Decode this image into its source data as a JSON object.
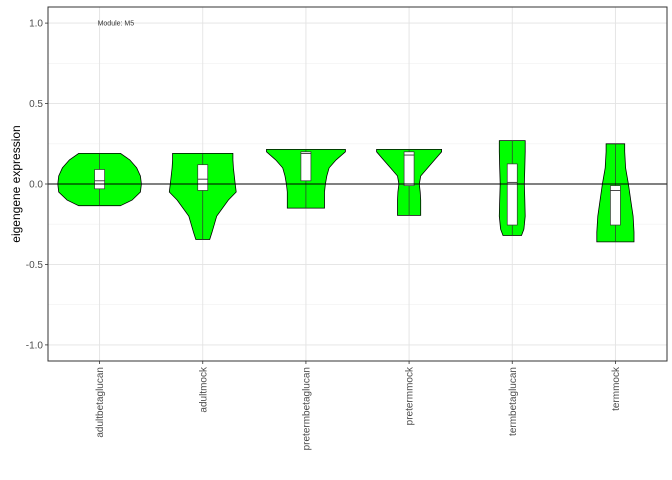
{
  "chart_data": {
    "type": "violin",
    "title": "",
    "xlabel": "",
    "ylabel": "eigengene expression",
    "ylim": [
      -1.1,
      1.1
    ],
    "yticks": [
      -1.0,
      -0.5,
      0.0,
      0.5,
      1.0
    ],
    "ytick_labels": [
      "-1.0",
      "-0.5",
      "0.0",
      "0.5",
      "1.0"
    ],
    "grid": true,
    "hline": 0.0,
    "fill_color": "#00ff00",
    "annotation": {
      "text": "Module: M5",
      "x": "adultbetaglucan",
      "y": 1.0
    },
    "categories": [
      "adultbetaglucan",
      "adultmock",
      "pretermbetaglucan",
      "pretermmock",
      "termbetaglucan",
      "termmock"
    ],
    "groups": [
      {
        "name": "adultbetaglucan",
        "ymin": -0.135,
        "ymax": 0.19,
        "q1": -0.03,
        "median": 0.02,
        "q3": 0.09,
        "profile": [
          [
            -0.135,
            0.45
          ],
          [
            -0.1,
            0.7
          ],
          [
            -0.05,
            0.88
          ],
          [
            0.0,
            0.9
          ],
          [
            0.05,
            0.88
          ],
          [
            0.1,
            0.8
          ],
          [
            0.15,
            0.65
          ],
          [
            0.19,
            0.45
          ]
        ]
      },
      {
        "name": "adultmock",
        "ymin": -0.345,
        "ymax": 0.19,
        "q1": -0.04,
        "median": 0.03,
        "q3": 0.12,
        "profile": [
          [
            -0.345,
            0.15
          ],
          [
            -0.3,
            0.2
          ],
          [
            -0.2,
            0.3
          ],
          [
            -0.1,
            0.55
          ],
          [
            -0.05,
            0.72
          ],
          [
            0.0,
            0.7
          ],
          [
            0.05,
            0.68
          ],
          [
            0.1,
            0.66
          ],
          [
            0.15,
            0.65
          ],
          [
            0.19,
            0.65
          ]
        ]
      },
      {
        "name": "pretermbetaglucan",
        "ymin": -0.15,
        "ymax": 0.215,
        "q1": 0.02,
        "median": 0.19,
        "q3": 0.2,
        "profile": [
          [
            -0.15,
            0.4
          ],
          [
            -0.1,
            0.4
          ],
          [
            -0.05,
            0.4
          ],
          [
            0.0,
            0.42
          ],
          [
            0.05,
            0.45
          ],
          [
            0.1,
            0.5
          ],
          [
            0.15,
            0.65
          ],
          [
            0.2,
            0.85
          ],
          [
            0.215,
            0.85
          ]
        ]
      },
      {
        "name": "pretermmock",
        "ymin": -0.195,
        "ymax": 0.215,
        "q1": -0.01,
        "median": 0.18,
        "q3": 0.2,
        "profile": [
          [
            -0.195,
            0.25
          ],
          [
            -0.1,
            0.25
          ],
          [
            -0.05,
            0.24
          ],
          [
            0.0,
            0.22
          ],
          [
            0.05,
            0.25
          ],
          [
            0.1,
            0.4
          ],
          [
            0.15,
            0.55
          ],
          [
            0.2,
            0.7
          ],
          [
            0.215,
            0.7
          ]
        ]
      },
      {
        "name": "termbetaglucan",
        "ymin": -0.32,
        "ymax": 0.27,
        "q1": -0.255,
        "median": 0.01,
        "q3": 0.125,
        "profile": [
          [
            -0.32,
            0.2
          ],
          [
            -0.28,
            0.25
          ],
          [
            -0.2,
            0.28
          ],
          [
            -0.1,
            0.27
          ],
          [
            0.0,
            0.26
          ],
          [
            0.1,
            0.27
          ],
          [
            0.2,
            0.28
          ],
          [
            0.27,
            0.28
          ]
        ]
      },
      {
        "name": "termmock",
        "ymin": -0.36,
        "ymax": 0.25,
        "q1": -0.255,
        "median": -0.04,
        "q3": -0.01,
        "profile": [
          [
            -0.36,
            0.4
          ],
          [
            -0.3,
            0.4
          ],
          [
            -0.2,
            0.38
          ],
          [
            -0.1,
            0.33
          ],
          [
            0.0,
            0.28
          ],
          [
            0.1,
            0.22
          ],
          [
            0.2,
            0.2
          ],
          [
            0.25,
            0.2
          ]
        ]
      }
    ]
  }
}
